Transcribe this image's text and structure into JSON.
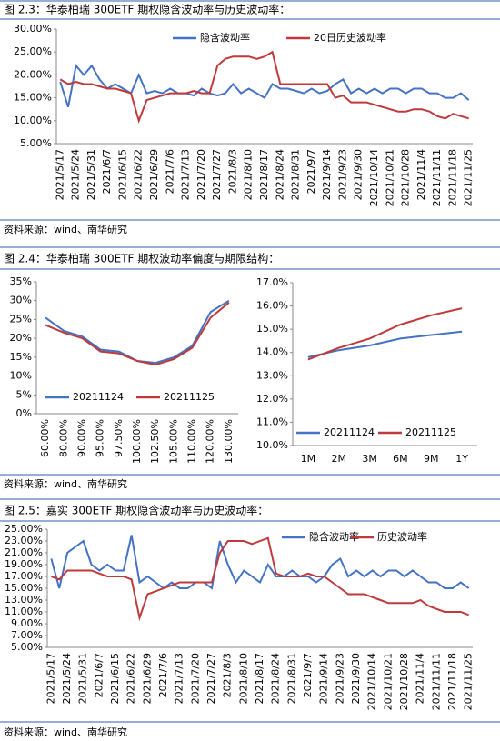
{
  "figures": [
    {
      "caption": "图 2.3：华泰柏瑞 300ETF 期权隐含波动率与历史波动率：",
      "source": "资料来源：wind、南华研究"
    },
    {
      "caption": "图 2.4：华泰柏瑞 300ETF 期权波动率偏度与期限结构：",
      "source": "资料来源：wind、南华研究"
    },
    {
      "caption": "图 2.5：嘉实 300ETF 期权隐含波动率与历史波动率：",
      "source": "资料来源：wind、南华研究"
    }
  ],
  "chart_data": [
    {
      "type": "line",
      "categories": [
        "2021/5/17",
        null,
        "2021/5/24",
        null,
        "2021/5/31",
        null,
        "2021/6/7",
        null,
        "2021/6/15",
        null,
        "2021/6/22",
        null,
        "2021/6/29",
        null,
        "2021/7/6",
        null,
        "2021/7/13",
        null,
        "2021/7/20",
        null,
        "2021/7/27",
        null,
        "2021/8/3",
        null,
        "2021/8/10",
        null,
        "2021/8/17",
        null,
        "2021/8/24",
        null,
        "2021/8/31",
        null,
        "2021/9/7",
        null,
        "2021/9/14",
        null,
        "2021/9/23",
        null,
        "2021/9/30",
        null,
        "2021/10/14",
        null,
        "2021/10/21",
        null,
        "2021/10/28",
        null,
        "2021/11/4",
        null,
        "2021/11/11",
        null,
        "2021/11/18",
        null,
        "2021/11/25"
      ],
      "series": [
        {
          "name": "隐含波动率",
          "color": "#4472c4",
          "values": [
            18.5,
            13,
            22,
            20,
            22,
            19,
            17,
            18,
            17,
            16,
            20,
            16,
            16.5,
            16,
            17,
            16,
            16,
            15.5,
            17,
            16,
            15.5,
            16,
            18,
            16,
            17,
            16,
            15,
            18,
            17,
            17,
            16.5,
            16,
            17,
            16,
            16.5,
            18,
            19,
            16,
            17,
            16,
            17,
            16,
            17,
            17,
            16,
            17,
            17,
            16,
            16,
            15,
            15,
            16,
            14.5
          ]
        },
        {
          "name": "20日历史波动率",
          "color": "#c0393b",
          "values": [
            19,
            18,
            18.5,
            18,
            18,
            17.5,
            17,
            17,
            16.5,
            16,
            10,
            14.5,
            15,
            15.5,
            16,
            16,
            16,
            16.5,
            16,
            16,
            22,
            23.5,
            24,
            24,
            24,
            23.5,
            24,
            25,
            18,
            18,
            18,
            18,
            18,
            18,
            18,
            15,
            15.5,
            14,
            14,
            14,
            13.5,
            13,
            12.5,
            12,
            12,
            12.5,
            12.5,
            12,
            11,
            10.5,
            11.5,
            11,
            10.5
          ]
        }
      ],
      "ylim": [
        5,
        30
      ],
      "yticks": [
        {
          "value": 5,
          "label": "5.00%"
        },
        {
          "value": 10,
          "label": "10.00%"
        },
        {
          "value": 15,
          "label": "15.00%"
        },
        {
          "value": 20,
          "label": "20.00%"
        },
        {
          "value": 25,
          "label": "25.00%"
        },
        {
          "value": 30,
          "label": "30.00%"
        }
      ]
    },
    {
      "type": "line",
      "categories": [
        "60.00%",
        "80.00%",
        "90.00%",
        "95.00%",
        "97.50%",
        "100.00%",
        "102.50%",
        "105.00%",
        "110.00%",
        "120.00%",
        "130.00%"
      ],
      "series": [
        {
          "name": "20211124",
          "color": "#4472c4",
          "values": [
            25.5,
            22,
            20.5,
            17,
            16.5,
            14,
            13.5,
            15,
            18,
            27,
            30
          ]
        },
        {
          "name": "20211125",
          "color": "#c0393b",
          "values": [
            23.5,
            21.5,
            20,
            16.5,
            16,
            14,
            13,
            14.5,
            17.5,
            25.5,
            29.5
          ]
        }
      ],
      "ylim": [
        0,
        35
      ],
      "yticks": [
        {
          "value": 0,
          "label": "0%"
        },
        {
          "value": 5,
          "label": "5%"
        },
        {
          "value": 10,
          "label": "10%"
        },
        {
          "value": 15,
          "label": "15%"
        },
        {
          "value": 20,
          "label": "20%"
        },
        {
          "value": 25,
          "label": "25%"
        },
        {
          "value": 30,
          "label": "30%"
        },
        {
          "value": 35,
          "label": "35%"
        }
      ]
    },
    {
      "type": "line",
      "categories": [
        "1M",
        "2M",
        "3M",
        "6M",
        "9M",
        "1Y"
      ],
      "series": [
        {
          "name": "20211124",
          "color": "#4472c4",
          "values": [
            13.8,
            14.1,
            14.3,
            14.6,
            14.75,
            14.9
          ]
        },
        {
          "name": "20211125",
          "color": "#c0393b",
          "values": [
            13.7,
            14.2,
            14.6,
            15.2,
            15.6,
            15.9
          ]
        }
      ],
      "ylim": [
        10,
        17
      ],
      "yticks": [
        {
          "value": 10,
          "label": "10.0%"
        },
        {
          "value": 11,
          "label": "11.0%"
        },
        {
          "value": 12,
          "label": "12.0%"
        },
        {
          "value": 13,
          "label": "13.0%"
        },
        {
          "value": 14,
          "label": "14.0%"
        },
        {
          "value": 15,
          "label": "15.0%"
        },
        {
          "value": 16,
          "label": "16.0%"
        },
        {
          "value": 17,
          "label": "17.0%"
        }
      ]
    },
    {
      "type": "line",
      "categories": [
        "2021/5/17",
        null,
        "2021/5/24",
        null,
        "2021/5/31",
        null,
        "2021/6/7",
        null,
        "2021/6/15",
        null,
        "2021/6/22",
        null,
        "2021/6/29",
        null,
        "2021/7/6",
        null,
        "2021/7/13",
        null,
        "2021/7/20",
        null,
        "2021/7/27",
        null,
        "2021/8/3",
        null,
        "2021/8/10",
        null,
        "2021/8/17",
        null,
        "2021/8/24",
        null,
        "2021/8/31",
        null,
        "2021/9/7",
        null,
        "2021/9/14",
        null,
        "2021/9/23",
        null,
        "2021/9/30",
        null,
        "2021/10/14",
        null,
        "2021/10/21",
        null,
        "2021/10/28",
        null,
        "2021/11/4",
        null,
        "2021/11/11",
        null,
        "2021/11/18",
        null,
        "2021/11/25"
      ],
      "series": [
        {
          "name": "隐含波动率",
          "color": "#4472c4",
          "values": [
            20,
            15,
            21,
            22,
            23,
            19,
            18,
            19,
            18,
            18,
            24,
            16,
            17,
            16,
            15,
            16,
            15,
            15,
            16,
            16,
            15,
            23,
            19,
            16,
            18,
            17,
            16,
            19,
            17,
            17,
            18,
            17,
            17,
            16,
            17,
            19,
            20,
            17,
            18,
            17,
            18,
            17,
            18,
            18,
            17,
            18,
            17,
            16,
            16,
            15,
            15,
            16,
            15
          ]
        },
        {
          "name": "历史波动率",
          "color": "#c0393b",
          "values": [
            17,
            16.5,
            18,
            18,
            18,
            18,
            17.5,
            17,
            17,
            17,
            16.5,
            10,
            14,
            14.5,
            15,
            15.5,
            16,
            16,
            16,
            16,
            16,
            21,
            23,
            23,
            23,
            22.5,
            23,
            23.5,
            17.5,
            17,
            17,
            17,
            17.5,
            17,
            17,
            16,
            15,
            14,
            14,
            14,
            13.5,
            13,
            12.5,
            12.5,
            12.5,
            12.5,
            13,
            12,
            11.5,
            11,
            11,
            11,
            10.5
          ]
        }
      ],
      "ylim": [
        5,
        25
      ],
      "yticks": [
        {
          "value": 5,
          "label": "5.00%"
        },
        {
          "value": 7,
          "label": "7.00%"
        },
        {
          "value": 9,
          "label": "9.00%"
        },
        {
          "value": 11,
          "label": "11.00%"
        },
        {
          "value": 13,
          "label": "13.00%"
        },
        {
          "value": 15,
          "label": "15.00%"
        },
        {
          "value": 17,
          "label": "17.00%"
        },
        {
          "value": 19,
          "label": "19.00%"
        },
        {
          "value": 21,
          "label": "21.00%"
        },
        {
          "value": 23,
          "label": "23.00%"
        },
        {
          "value": 25,
          "label": "25.00%"
        }
      ]
    }
  ]
}
